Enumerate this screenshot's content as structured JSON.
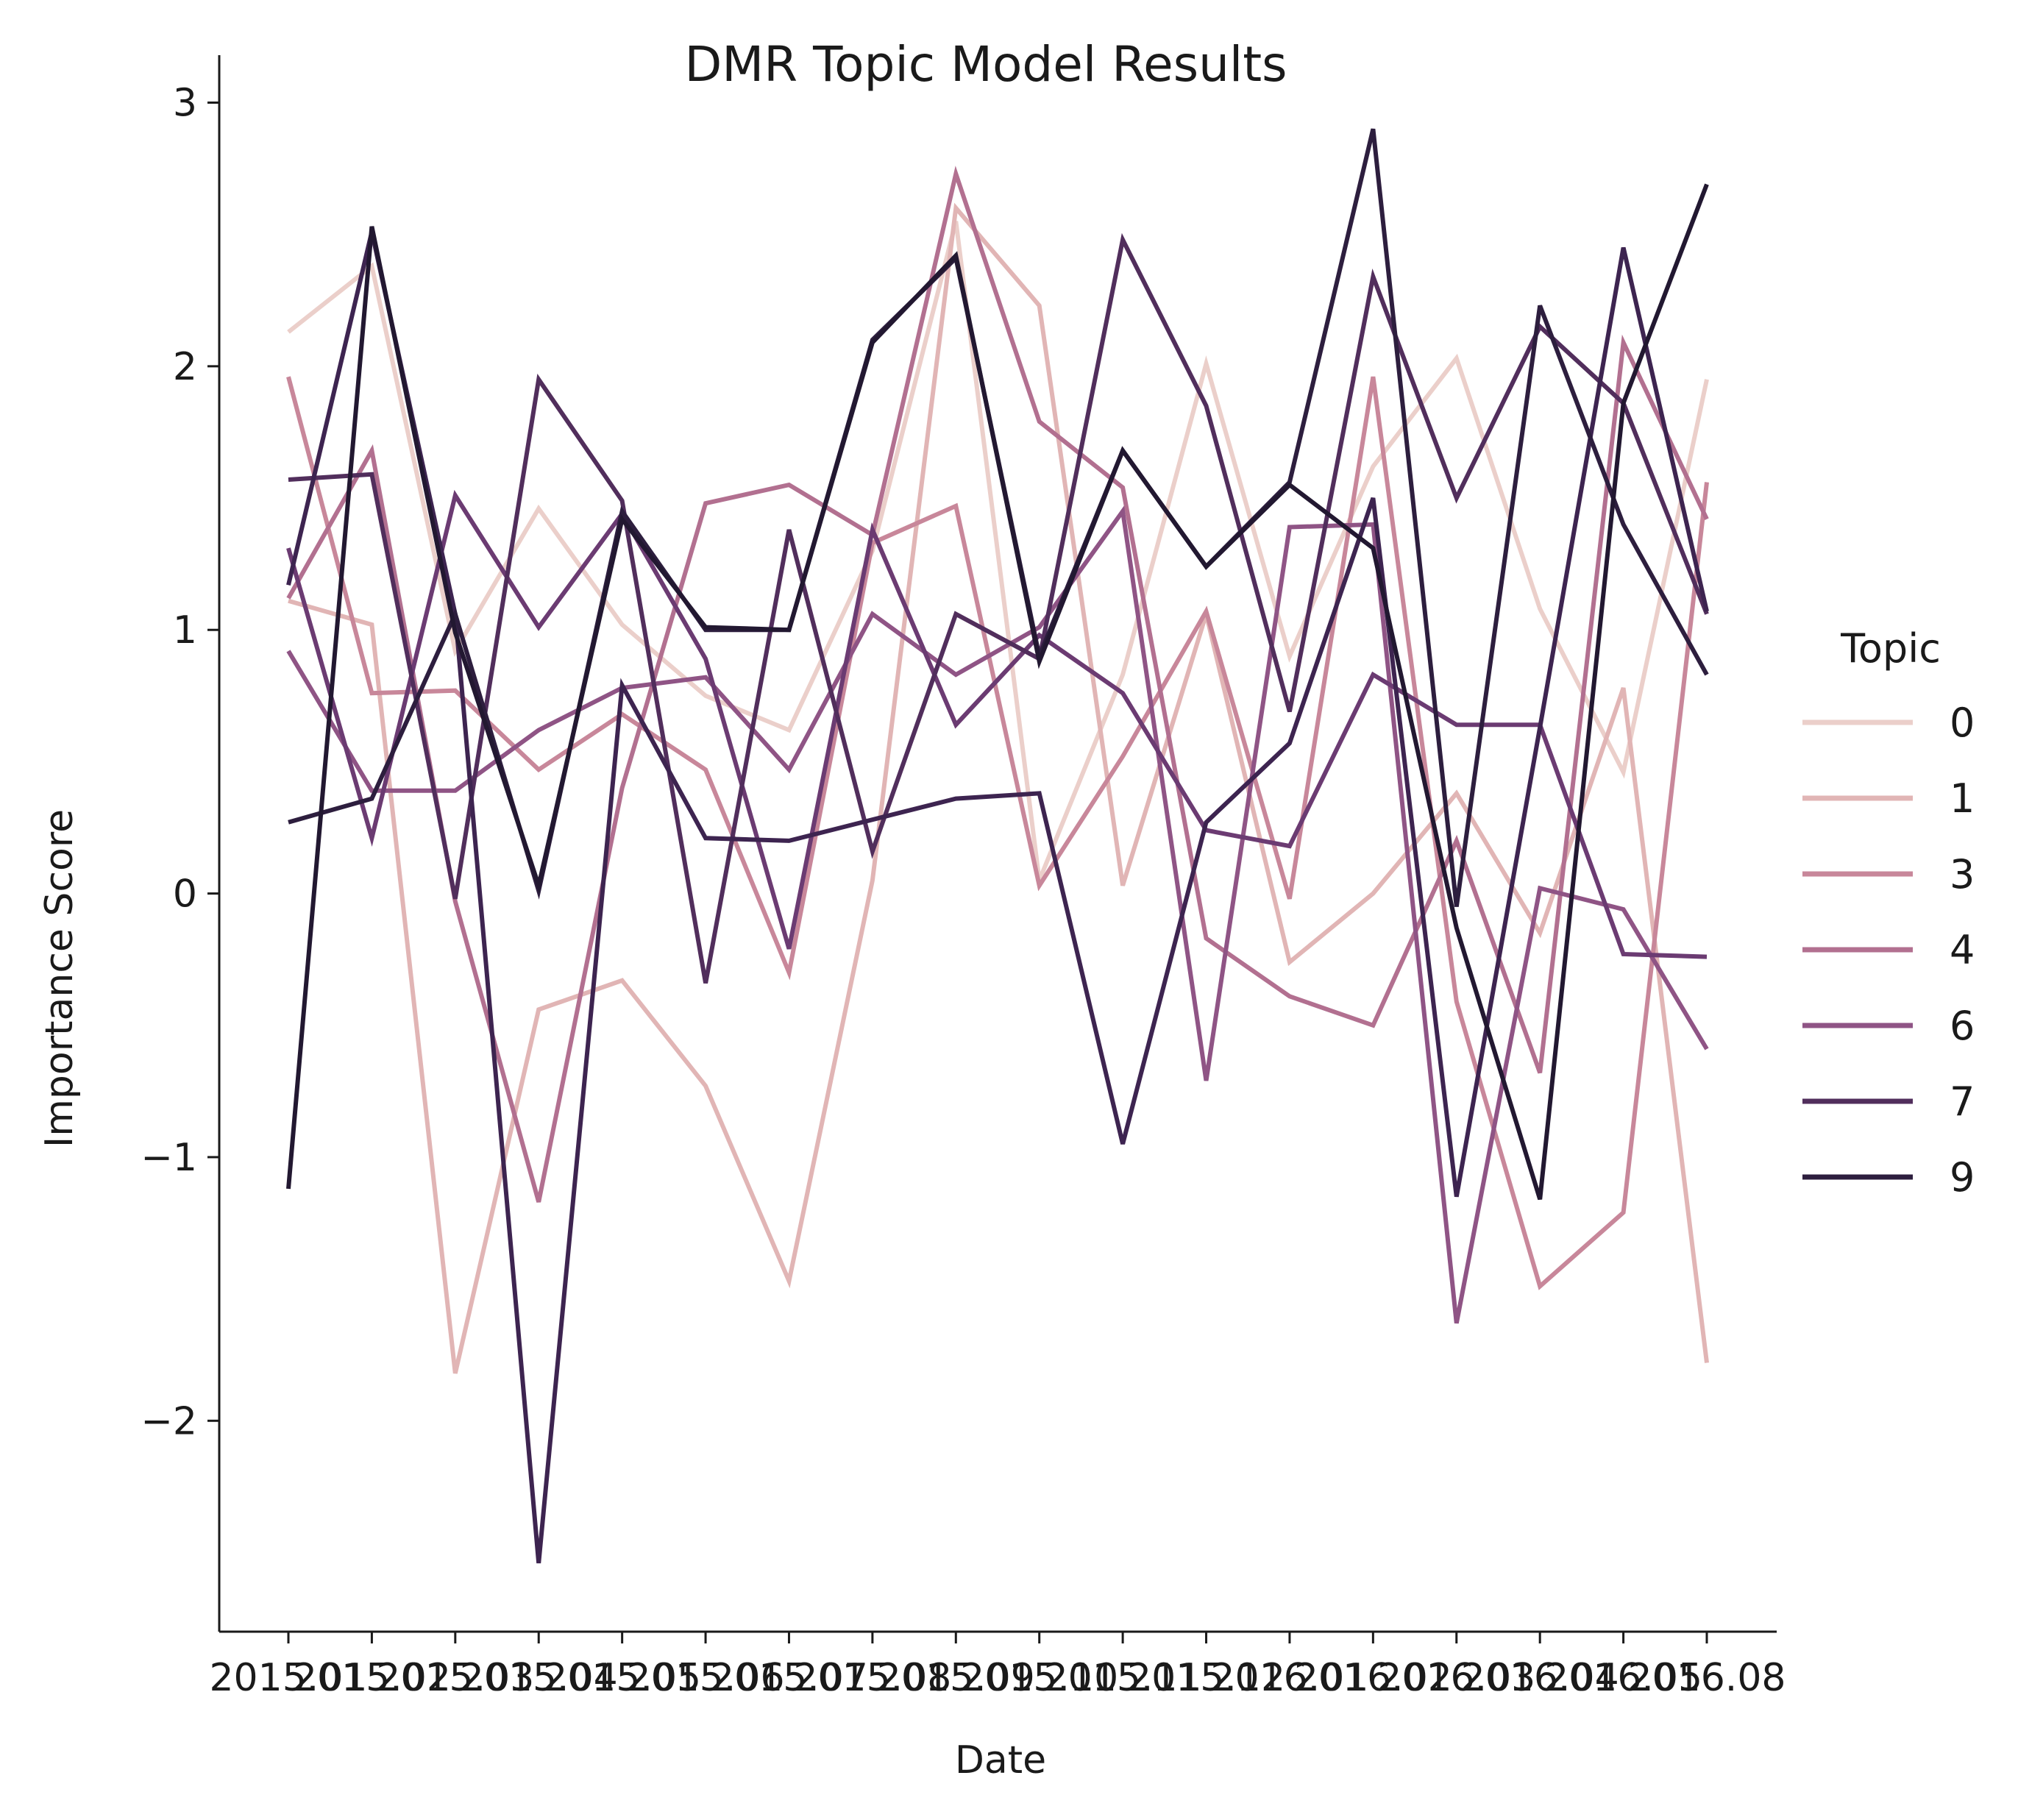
{
  "chart_data": {
    "type": "line",
    "title": "DMR Topic Model Results",
    "xlabel": "Date",
    "ylabel": "Importance Score",
    "ylim": [
      -2.8,
      3.18
    ],
    "yticks": [
      -2,
      -1,
      0,
      1,
      2,
      3
    ],
    "ytick_labels": [
      "−2",
      "−1",
      "0",
      "1",
      "2",
      "3"
    ],
    "grid": false,
    "legend_placement": "right",
    "legend_title": "Topic",
    "categories": [
      "2015.01",
      "2015.02",
      "2015.03",
      "2015.04",
      "2015.05",
      "2015.06",
      "2015.07",
      "2015.08",
      "2015.09",
      "2015.10",
      "2015.11",
      "2015.12",
      "2016.01",
      "2016.02",
      "2016.03",
      "2016.04",
      "2016.05",
      "2016.08"
    ],
    "series": [
      {
        "name": "0",
        "color": "#ebcfca",
        "values": [
          2.13,
          2.38,
          0.92,
          1.46,
          1.02,
          0.75,
          0.62,
          1.3,
          2.55,
          0.05,
          0.83,
          2.01,
          0.9,
          1.62,
          2.03,
          1.08,
          0.46,
          1.95
        ]
      },
      {
        "name": "1",
        "color": "#e1b5b5",
        "values": [
          1.11,
          1.02,
          -1.82,
          -0.44,
          -0.33,
          -0.73,
          -1.47,
          0.05,
          2.6,
          2.23,
          0.03,
          1.06,
          -0.26,
          0.0,
          0.38,
          -0.15,
          0.78,
          -1.78
        ]
      },
      {
        "name": "3",
        "color": "#c8879a",
        "values": [
          1.96,
          0.76,
          0.77,
          0.47,
          0.68,
          0.47,
          -0.3,
          1.33,
          1.47,
          0.03,
          0.52,
          1.07,
          -0.02,
          1.96,
          -0.41,
          -1.49,
          -1.21,
          1.56
        ]
      },
      {
        "name": "4",
        "color": "#b27090",
        "values": [
          1.12,
          1.68,
          -0.03,
          -1.17,
          0.4,
          1.48,
          1.55,
          1.36,
          2.73,
          1.79,
          1.54,
          -0.17,
          -0.39,
          -0.5,
          0.2,
          -0.68,
          2.09,
          1.42
        ]
      },
      {
        "name": "6",
        "color": "#8f5485",
        "values": [
          0.92,
          0.39,
          0.39,
          0.62,
          0.78,
          0.82,
          0.47,
          1.06,
          0.83,
          1.01,
          1.45,
          -0.71,
          1.39,
          1.4,
          -1.63,
          0.02,
          -0.06,
          -0.59
        ]
      },
      {
        "name": "7",
        "color": "#6b3b72",
        "values": [
          1.31,
          0.21,
          1.51,
          1.01,
          1.44,
          0.89,
          -0.21,
          1.38,
          0.64,
          0.98,
          0.76,
          0.24,
          0.18,
          0.83,
          0.64,
          0.64,
          -0.23,
          -0.24
        ]
      },
      {
        "name": "7",
        "color": "#512e5c",
        "values": [
          1.57,
          1.59,
          -0.02,
          1.95,
          1.49,
          -0.34,
          1.38,
          0.16,
          1.06,
          0.89,
          2.48,
          1.85,
          0.69,
          2.34,
          1.5,
          2.15,
          1.86,
          1.06
        ]
      },
      {
        "name": "7",
        "color": "#3d2450",
        "values": [
          1.17,
          2.51,
          1.06,
          -2.54,
          0.79,
          0.21,
          0.2,
          0.28,
          0.36,
          0.38,
          -0.95,
          0.27,
          0.57,
          1.5,
          -1.15,
          0.63,
          2.45,
          1.07
        ]
      },
      {
        "name": "9",
        "color": "#2d1e3e",
        "values": [
          0.27,
          0.36,
          1.06,
          0.01,
          1.45,
          1.0,
          1.0,
          2.1,
          2.41,
          0.9,
          1.68,
          1.24,
          1.56,
          2.9,
          -0.05,
          2.23,
          1.4,
          0.83
        ]
      },
      {
        "name": "9",
        "color": "#221831",
        "values": [
          -1.12,
          2.53,
          0.99,
          0.03,
          1.42,
          1.01,
          1.0,
          2.09,
          2.42,
          0.88,
          1.68,
          1.24,
          1.55,
          1.31,
          -0.13,
          -1.16,
          1.86,
          2.69
        ]
      }
    ],
    "legend": [
      {
        "label": "0",
        "color": "#ebcfca"
      },
      {
        "label": "1",
        "color": "#e1b5b5"
      },
      {
        "label": "3",
        "color": "#c8879a"
      },
      {
        "label": "4",
        "color": "#b27090"
      },
      {
        "label": "6",
        "color": "#8f5485"
      },
      {
        "label": "7",
        "color": "#512e5c"
      },
      {
        "label": "9",
        "color": "#2d1e3e"
      }
    ]
  }
}
